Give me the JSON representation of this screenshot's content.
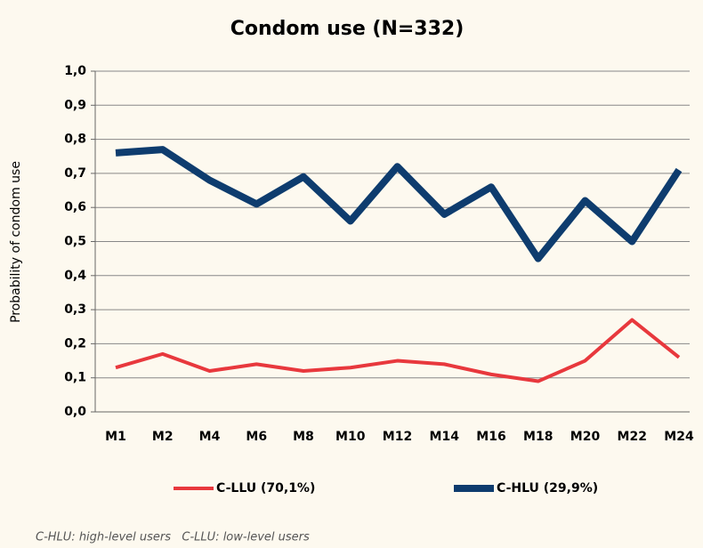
{
  "chart_data": {
    "type": "line",
    "title": "Condom use (N=332)",
    "y_label": "Probability of condom use",
    "categories": [
      "M1",
      "M2",
      "M4",
      "M6",
      "M8",
      "M10",
      "M12",
      "M14",
      "M16",
      "M18",
      "M20",
      "M22",
      "M24"
    ],
    "series": [
      {
        "name": "C-LLU (70,1%)",
        "color": "#e8383d",
        "values": [
          0.13,
          0.17,
          0.12,
          0.14,
          0.12,
          0.13,
          0.15,
          0.14,
          0.11,
          0.09,
          0.15,
          0.27,
          0.16
        ]
      },
      {
        "name": "C-HLU (29,9%)",
        "color": "#0e3c6e",
        "values": [
          0.76,
          0.77,
          0.68,
          0.61,
          0.69,
          0.56,
          0.72,
          0.58,
          0.66,
          0.45,
          0.62,
          0.5,
          0.71
        ]
      }
    ],
    "ylim": [
      0,
      1
    ],
    "yticks": [
      {
        "value": 0,
        "label": "0,0"
      },
      {
        "value": 0.1,
        "label": "0,1"
      },
      {
        "value": 0.2,
        "label": "0,2"
      },
      {
        "value": 0.3,
        "label": "0,3"
      },
      {
        "value": 0.4,
        "label": "0,4"
      },
      {
        "value": 0.5,
        "label": "0,5"
      },
      {
        "value": 0.6,
        "label": "0,6"
      },
      {
        "value": 0.7,
        "label": "0,7"
      },
      {
        "value": 0.8,
        "label": "0,8"
      },
      {
        "value": 0.9,
        "label": "0,9"
      },
      {
        "value": 1,
        "label": "1,0"
      }
    ],
    "grid": true,
    "legend": "bottom",
    "footnote": "C-HLU: high-level users   C-LLU: low-level users"
  }
}
